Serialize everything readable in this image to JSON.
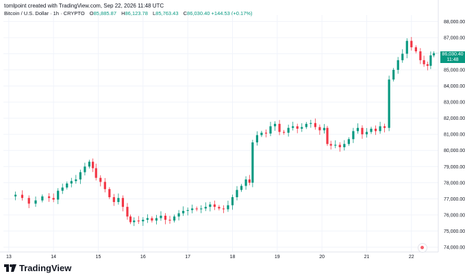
{
  "header": {
    "credit": "tomlpoint created with TradingView.com, Sep 22, 2026 11:48 UTC",
    "symbol": "Bitcoin / U.S. Dollar · 1h · CRYPTO",
    "o_label": "O",
    "o_value": "85,885.87",
    "h_label": "H",
    "h_value": "86,123.78",
    "l_label": "L",
    "l_value": "85,763.43",
    "c_label": "C",
    "c_value": "86,030.40",
    "change": "+144.53 (+0.17%)"
  },
  "price_tag": {
    "price": "86,030.40",
    "time": "11:48"
  },
  "logo_text": "TradingView",
  "colors": {
    "up": "#089981",
    "down": "#f23645",
    "grid": "#f0f3fa",
    "axis_text": "#131722"
  },
  "chart_data": {
    "type": "candlestick",
    "title": "",
    "x_tick_labels": [
      "13",
      "14",
      "15",
      "16",
      "17",
      "18",
      "19",
      "20",
      "21",
      "22"
    ],
    "y_tick_labels": [
      "74,000.00",
      "75,000.00",
      "76,000.00",
      "77,000.00",
      "78,000.00",
      "79,000.00",
      "80,000.00",
      "81,000.00",
      "82,000.00",
      "83,000.00",
      "84,000.00",
      "85,000.00",
      "86,000.00",
      "87,000.00",
      "88,000.00"
    ],
    "ylim": [
      73700,
      88400
    ],
    "x_day_range": [
      12.88,
      22.6
    ],
    "series_close": [
      [
        13.0,
        77150
      ],
      [
        13.15,
        77250
      ],
      [
        13.3,
        77050
      ],
      [
        13.45,
        76700
      ],
      [
        13.6,
        76900
      ],
      [
        13.75,
        77150
      ],
      [
        13.9,
        77050
      ],
      [
        14.0,
        76950
      ],
      [
        14.1,
        77500
      ],
      [
        14.2,
        77700
      ],
      [
        14.3,
        77950
      ],
      [
        14.4,
        78100
      ],
      [
        14.5,
        78200
      ],
      [
        14.6,
        78650
      ],
      [
        14.7,
        79000
      ],
      [
        14.8,
        79300
      ],
      [
        14.88,
        78900
      ],
      [
        14.95,
        78300
      ],
      [
        15.05,
        78050
      ],
      [
        15.15,
        77600
      ],
      [
        15.25,
        77100
      ],
      [
        15.35,
        76800
      ],
      [
        15.45,
        77050
      ],
      [
        15.55,
        76500
      ],
      [
        15.65,
        75900
      ],
      [
        15.72,
        75550
      ],
      [
        15.8,
        75650
      ],
      [
        15.9,
        75600
      ],
      [
        16.0,
        75700
      ],
      [
        16.1,
        75800
      ],
      [
        16.2,
        75650
      ],
      [
        16.3,
        75800
      ],
      [
        16.4,
        75950
      ],
      [
        16.5,
        75700
      ],
      [
        16.6,
        75650
      ],
      [
        16.7,
        75900
      ],
      [
        16.8,
        76100
      ],
      [
        16.9,
        76250
      ],
      [
        17.0,
        76300
      ],
      [
        17.1,
        76400
      ],
      [
        17.2,
        76350
      ],
      [
        17.3,
        76400
      ],
      [
        17.4,
        76500
      ],
      [
        17.5,
        76650
      ],
      [
        17.6,
        76500
      ],
      [
        17.7,
        76400
      ],
      [
        17.8,
        76350
      ],
      [
        17.9,
        76600
      ],
      [
        18.0,
        77100
      ],
      [
        18.1,
        77550
      ],
      [
        18.2,
        77800
      ],
      [
        18.3,
        78200
      ],
      [
        18.38,
        78000
      ],
      [
        18.45,
        80500
      ],
      [
        18.55,
        80950
      ],
      [
        18.65,
        81100
      ],
      [
        18.75,
        81050
      ],
      [
        18.85,
        81500
      ],
      [
        18.95,
        81650
      ],
      [
        19.05,
        81150
      ],
      [
        19.15,
        81100
      ],
      [
        19.25,
        81400
      ],
      [
        19.35,
        81500
      ],
      [
        19.45,
        81350
      ],
      [
        19.55,
        81450
      ],
      [
        19.65,
        81650
      ],
      [
        19.75,
        81700
      ],
      [
        19.85,
        81450
      ],
      [
        19.95,
        81250
      ],
      [
        20.05,
        81400
      ],
      [
        20.12,
        80400
      ],
      [
        20.2,
        80300
      ],
      [
        20.3,
        80350
      ],
      [
        20.4,
        80200
      ],
      [
        20.5,
        80400
      ],
      [
        20.6,
        80700
      ],
      [
        20.7,
        81200
      ],
      [
        20.8,
        81400
      ],
      [
        20.9,
        81000
      ],
      [
        21.0,
        81150
      ],
      [
        21.1,
        81350
      ],
      [
        21.2,
        81200
      ],
      [
        21.3,
        81500
      ],
      [
        21.4,
        81400
      ],
      [
        21.5,
        84400
      ],
      [
        21.6,
        85000
      ],
      [
        21.7,
        85600
      ],
      [
        21.8,
        86000
      ],
      [
        21.9,
        86800
      ],
      [
        22.0,
        86400
      ],
      [
        22.1,
        86150
      ],
      [
        22.2,
        85600
      ],
      [
        22.28,
        85350
      ],
      [
        22.36,
        85250
      ],
      [
        22.43,
        85900
      ],
      [
        22.5,
        86030
      ]
    ],
    "last_price": 86030.4
  }
}
